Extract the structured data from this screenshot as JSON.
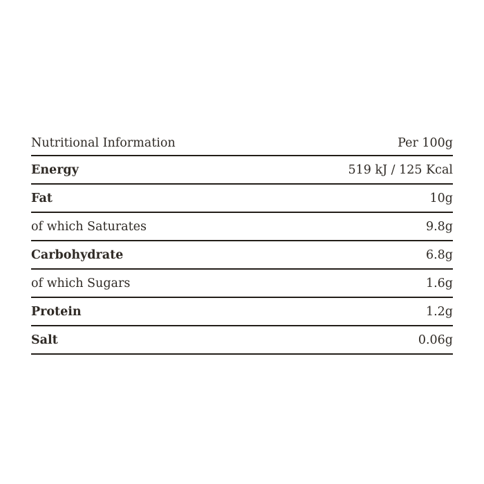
{
  "colors": {
    "background": "#ffffff",
    "text": "#2f2a25",
    "rule": "#221d18"
  },
  "table": {
    "header": {
      "label": "Nutritional Information",
      "value": "Per 100g"
    },
    "rows": [
      {
        "label": "Energy",
        "value": "519 kJ / 125 Kcal",
        "bold": true
      },
      {
        "label": "Fat",
        "value": "10g",
        "bold": true
      },
      {
        "label": "of which Saturates",
        "value": "9.8g",
        "bold": false
      },
      {
        "label": "Carbohydrate",
        "value": "6.8g",
        "bold": true
      },
      {
        "label": "of which Sugars",
        "value": "1.6g",
        "bold": false
      },
      {
        "label": "Protein",
        "value": "1.2g",
        "bold": true
      },
      {
        "label": "Salt",
        "value": "0.06g",
        "bold": true
      }
    ]
  }
}
